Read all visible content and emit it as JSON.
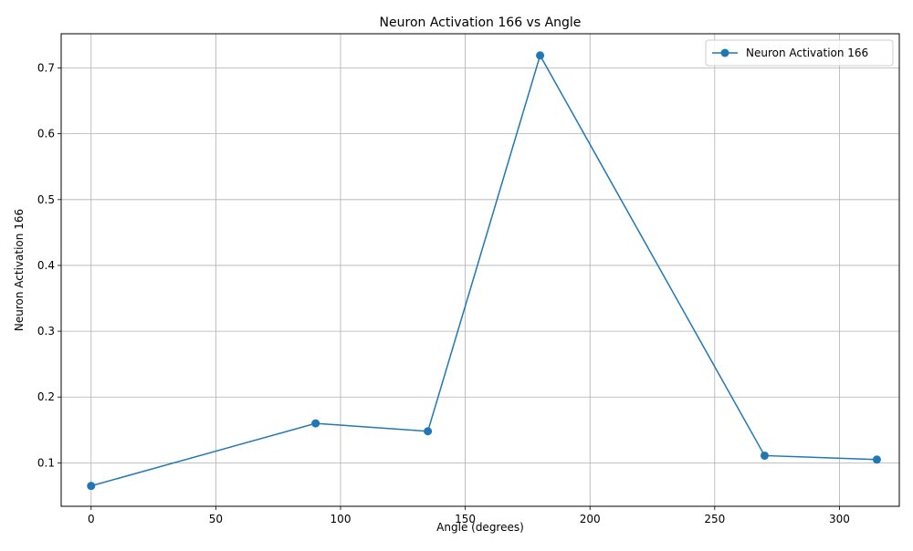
{
  "chart_data": {
    "type": "line",
    "title": "Neuron Activation 166 vs Angle",
    "xlabel": "Angle (degrees)",
    "ylabel": "Neuron Activation 166",
    "xlim": [
      -12,
      324
    ],
    "ylim": [
      0.034,
      0.752
    ],
    "xticks": [
      0,
      50,
      100,
      150,
      200,
      250,
      300
    ],
    "yticks": [
      0.1,
      0.2,
      0.3,
      0.4,
      0.5,
      0.6,
      0.7
    ],
    "grid": true,
    "legend_position": "top-right",
    "series": [
      {
        "name": "Neuron Activation 166",
        "color": "#1f77b4",
        "marker": "circle",
        "x": [
          0,
          90,
          135,
          180,
          270,
          315
        ],
        "y": [
          0.065,
          0.16,
          0.148,
          0.719,
          0.111,
          0.105
        ]
      }
    ]
  }
}
